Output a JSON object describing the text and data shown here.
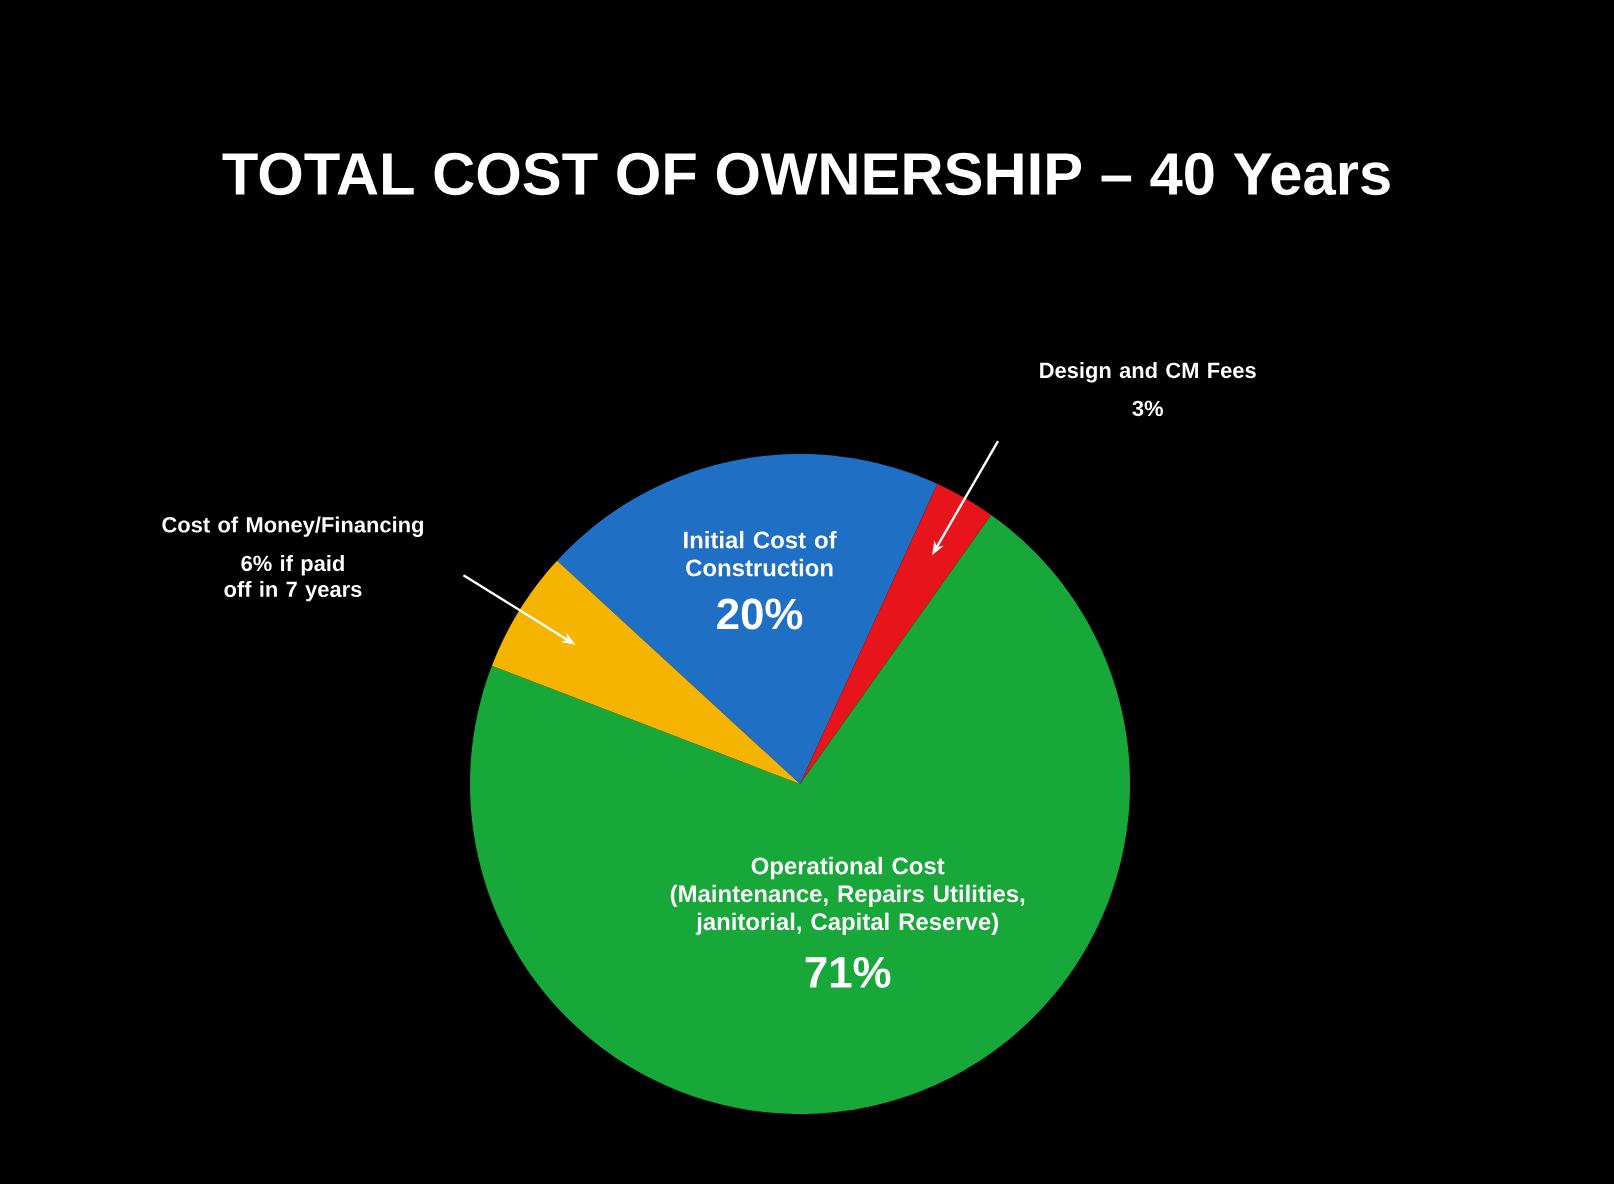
{
  "chart_data": {
    "type": "pie",
    "title": "TOTAL COST OF OWNERSHIP – 40 Years",
    "categories": [
      "Initial Cost of Construction",
      "Design and CM Fees",
      "Operational Cost (Maintenance, Repairs Utilities, janitorial, Capital Reserve)",
      "Cost of Money/Financing"
    ],
    "values": [
      20,
      3,
      71,
      6
    ],
    "value_labels": [
      "20%",
      "3%",
      "71%",
      "6% if paid off in 7 years"
    ],
    "colors": [
      "#1f6fc4",
      "#e8141b",
      "#18a83a",
      "#f5b400"
    ]
  }
}
